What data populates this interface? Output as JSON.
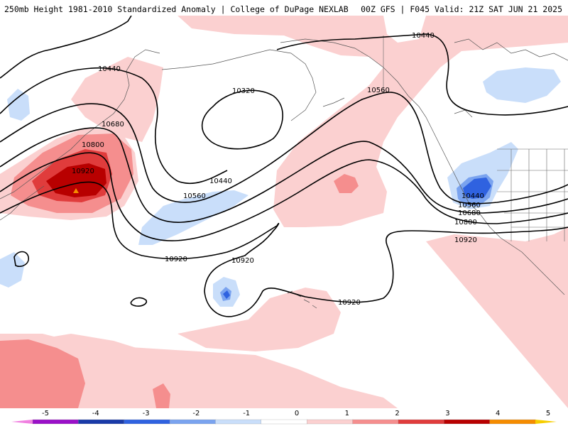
{
  "header": {
    "left": "250mb Height 1981-2010 Standardized Anomaly | College of DuPage NEXLAB",
    "right": "00Z GFS | F045 Valid: 21Z SAT JUN 21 2025"
  },
  "contour_labels": {
    "c10440_nw": "10440",
    "c10320": "10320",
    "c10440_ne": "10440",
    "c10560_n": "10560",
    "c10680_w": "10680",
    "c10800_w": "10800",
    "c10920_center": "10920",
    "c10440_mid": "10440",
    "c10560_mid": "10560",
    "c10920_s1": "10920",
    "c10920_s2": "10920",
    "c10920_s3": "10920",
    "c10920_e": "10920",
    "c10440_e": "10440",
    "c10560_e": "10560",
    "c10680_e": "10680",
    "c10800_e": "10800"
  },
  "colorbar": {
    "ticks": [
      "-5",
      "-4",
      "-3",
      "-2",
      "-1",
      "0",
      "1",
      "2",
      "3",
      "4",
      "5"
    ],
    "colors": [
      "#f080e0",
      "#9a10c8",
      "#1a3aa8",
      "#2f62e0",
      "#7aa3ef",
      "#c9defa",
      "#ffffff",
      "#fbd0d0",
      "#f58e8e",
      "#e03c3c",
      "#b80000",
      "#f58c00",
      "#f6cd00"
    ]
  },
  "anomaly_colors": {
    "pos1": "#fbd0d0",
    "pos2": "#f58e8e",
    "pos3": "#e03c3c",
    "pos4": "#b80000",
    "pos5": "#f58c00",
    "neg1": "#c9defa",
    "neg2": "#7aa3ef",
    "neg3": "#2f62e0"
  }
}
